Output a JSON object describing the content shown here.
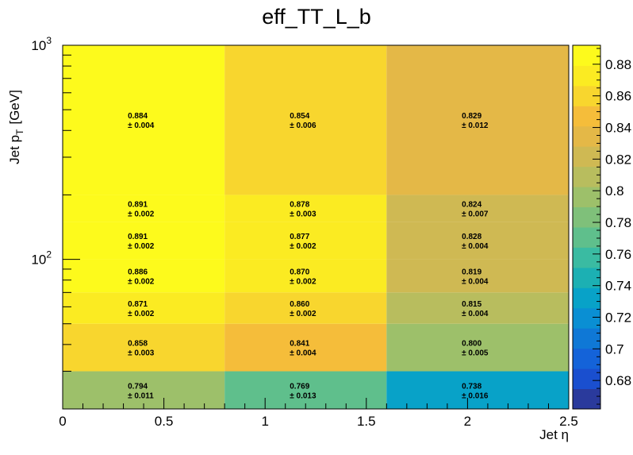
{
  "chart_data": {
    "type": "heatmap",
    "title": "eff_TT_L_b",
    "xlabel": "Jet η",
    "ylabel": "Jet p_T [GeV]",
    "ylabel_main": "Jet p",
    "ylabel_sub": "T",
    "ylabel_unit": "[GeV]",
    "x_edges": [
      0,
      0.8,
      1.6,
      2.5
    ],
    "y_edges": [
      20,
      30,
      50,
      70,
      100,
      150,
      200,
      1000
    ],
    "y_scale": "log",
    "xlim": [
      0,
      2.5
    ],
    "ylim": [
      20,
      1000
    ],
    "x_ticks": [
      "0",
      "0.5",
      "1",
      "1.5",
      "2",
      "2.5"
    ],
    "y_tick_labels": [
      {
        "base": "10",
        "exp": "2"
      },
      {
        "base": "10",
        "exp": "3"
      }
    ],
    "z_range": [
      0.662,
      0.892
    ],
    "colorbar_ticks": [
      "0.68",
      "0.7",
      "0.72",
      "0.74",
      "0.76",
      "0.78",
      "0.8",
      "0.82",
      "0.84",
      "0.86",
      "0.88"
    ],
    "colorbar_levels": [
      "#2a3a9c",
      "#1a4fcf",
      "#1463d9",
      "#0f78d6",
      "#0a8fd3",
      "#08a2c8",
      "#1cb0b3",
      "#3abba2",
      "#5fbf8c",
      "#7fc07a",
      "#9dc06a",
      "#b8bd5e",
      "#cfb953",
      "#e4b847",
      "#f5bd3a",
      "#f8d62e",
      "#fbeb22",
      "#fdfa1c"
    ],
    "values": [
      [
        "0.794",
        "0.769",
        "0.738"
      ],
      [
        "0.858",
        "0.841",
        "0.800"
      ],
      [
        "0.871",
        "0.860",
        "0.815"
      ],
      [
        "0.886",
        "0.870",
        "0.819"
      ],
      [
        "0.891",
        "0.877",
        "0.828"
      ],
      [
        "0.891",
        "0.878",
        "0.824"
      ],
      [
        "0.884",
        "0.854",
        "0.829"
      ]
    ],
    "errors": [
      [
        "± 0.011",
        "± 0.013",
        "± 0.016"
      ],
      [
        "± 0.003",
        "± 0.004",
        "± 0.005"
      ],
      [
        "± 0.002",
        "± 0.002",
        "± 0.004"
      ],
      [
        "± 0.002",
        "± 0.002",
        "± 0.004"
      ],
      [
        "± 0.002",
        "± 0.002",
        "± 0.004"
      ],
      [
        "± 0.002",
        "± 0.003",
        "± 0.007"
      ],
      [
        "± 0.004",
        "± 0.006",
        "± 0.012"
      ]
    ]
  }
}
